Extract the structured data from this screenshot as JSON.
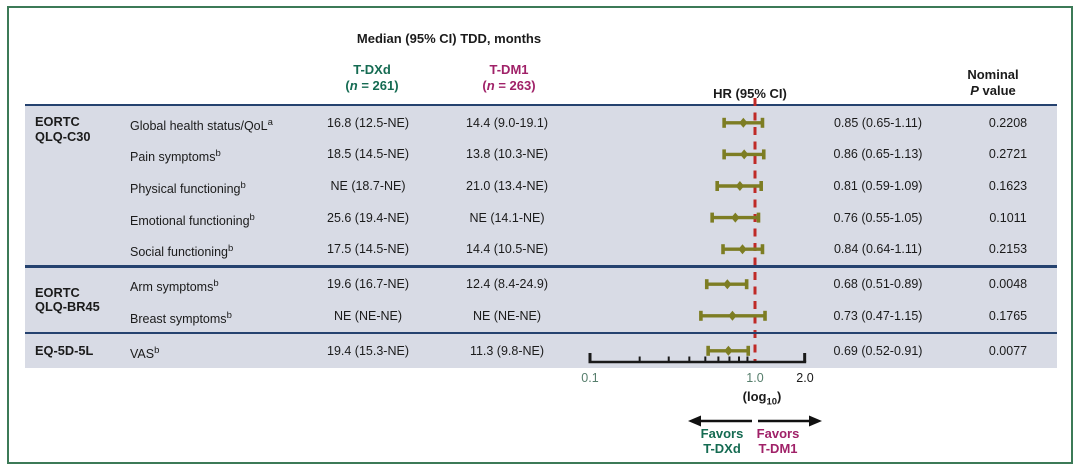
{
  "colors": {
    "tdxd_green": "#156b52",
    "tdm1_magenta": "#a02168",
    "navy_line": "#25426f",
    "band_background": "#d8dbe5",
    "marker_olive": "#7d7d23",
    "reference_line_red": "#bf2a27",
    "frame_green": "#3c7a57",
    "tick_label_green": "#567e6c"
  },
  "header": {
    "title": "Median (95% CI) TDD, months",
    "tdxd_name": "T-DXd",
    "tdxd_n_parts": [
      "(",
      "n",
      " = 261)"
    ],
    "tdm1_name": "T-DM1",
    "tdm1_n_parts": [
      "(",
      "n",
      " = 263)"
    ],
    "hr_col": "HR (95% CI)",
    "p_col_parts": [
      "Nominal",
      "P",
      " value"
    ]
  },
  "chart_data": {
    "type": "forest",
    "x_axis": {
      "scale": "log10",
      "min": 0.1,
      "max": 2.0,
      "tick_values": [
        0.1,
        1.0,
        2.0
      ],
      "tick_labels": [
        "0.1",
        "1.0",
        "2.0"
      ],
      "minor_ticks": [
        0.2,
        0.3,
        0.4,
        0.5,
        0.6,
        0.7,
        0.8,
        0.9
      ],
      "reference_line": 1.0,
      "axis_label_parts": [
        "(log",
        "10",
        ")"
      ]
    },
    "groups": [
      {
        "label_lines": [
          "EORTC",
          "QLQ-C30"
        ],
        "rows": [
          {
            "measure": "Global health status/QoL",
            "sup": "a",
            "tdxd": "16.8 (12.5-NE)",
            "tdm1": "14.4 (9.0-19.1)",
            "hr": 0.85,
            "ci_low": 0.65,
            "ci_high": 1.11,
            "hr_text": "0.85 (0.65-1.11)",
            "p_value": "0.2208"
          },
          {
            "measure": "Pain symptoms",
            "sup": "b",
            "tdxd": "18.5 (14.5-NE)",
            "tdm1": "13.8 (10.3-NE)",
            "hr": 0.86,
            "ci_low": 0.65,
            "ci_high": 1.13,
            "hr_text": "0.86 (0.65-1.13)",
            "p_value": "0.2721"
          },
          {
            "measure": "Physical functioning",
            "sup": "b",
            "tdxd": "NE (18.7-NE)",
            "tdm1": "21.0 (13.4-NE)",
            "hr": 0.81,
            "ci_low": 0.59,
            "ci_high": 1.09,
            "hr_text": "0.81 (0.59-1.09)",
            "p_value": "0.1623"
          },
          {
            "measure": "Emotional functioning",
            "sup": "b",
            "tdxd": "25.6 (19.4-NE)",
            "tdm1": "NE (14.1-NE)",
            "hr": 0.76,
            "ci_low": 0.55,
            "ci_high": 1.05,
            "hr_text": "0.76 (0.55-1.05)",
            "p_value": "0.1011"
          },
          {
            "measure": "Social functioning",
            "sup": "b",
            "tdxd": "17.5 (14.5-NE)",
            "tdm1": "14.4 (10.5-NE)",
            "hr": 0.84,
            "ci_low": 0.64,
            "ci_high": 1.11,
            "hr_text": "0.84 (0.64-1.11)",
            "p_value": "0.2153"
          }
        ]
      },
      {
        "label_lines": [
          "EORTC",
          "QLQ-BR45"
        ],
        "rows": [
          {
            "measure": "Arm symptoms",
            "sup": "b",
            "tdxd": "19.6 (16.7-NE)",
            "tdm1": "12.4 (8.4-24.9)",
            "hr": 0.68,
            "ci_low": 0.51,
            "ci_high": 0.89,
            "hr_text": "0.68 (0.51-0.89)",
            "p_value": "0.0048"
          },
          {
            "measure": "Breast symptoms",
            "sup": "b",
            "tdxd": "NE (NE-NE)",
            "tdm1": "NE (NE-NE)",
            "hr": 0.73,
            "ci_low": 0.47,
            "ci_high": 1.15,
            "hr_text": "0.73 (0.47-1.15)",
            "p_value": "0.1765"
          }
        ]
      },
      {
        "label_lines": [
          "EQ-5D-5L"
        ],
        "rows": [
          {
            "measure": "VAS",
            "sup": "b",
            "tdxd": "19.4 (15.3-NE)",
            "tdm1": "11.3 (9.8-NE)",
            "hr": 0.69,
            "ci_low": 0.52,
            "ci_high": 0.91,
            "hr_text": "0.69 (0.52-0.91)",
            "p_value": "0.0077"
          }
        ]
      }
    ],
    "footer": {
      "favors_left": [
        "Favors",
        "T-DXd"
      ],
      "favors_right": [
        "Favors",
        "T-DM1"
      ]
    }
  }
}
